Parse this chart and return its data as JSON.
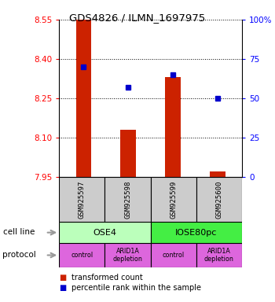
{
  "title": "GDS4826 / ILMN_1697975",
  "samples": [
    "GSM925597",
    "GSM925598",
    "GSM925599",
    "GSM925600"
  ],
  "bar_values": [
    8.55,
    8.13,
    8.33,
    7.97
  ],
  "bar_baseline": 7.95,
  "percentile_values": [
    70,
    57,
    65,
    50
  ],
  "bar_color": "#CC2200",
  "dot_color": "#0000CC",
  "left_yticks": [
    7.95,
    8.1,
    8.25,
    8.4,
    8.55
  ],
  "right_yticks": [
    0,
    25,
    50,
    75,
    100
  ],
  "ylim_left": [
    7.95,
    8.55
  ],
  "ylim_right": [
    0,
    100
  ],
  "cell_line_labels": [
    "OSE4",
    "IOSE80pc"
  ],
  "cell_line_spans": [
    [
      0,
      2
    ],
    [
      2,
      4
    ]
  ],
  "cell_line_color_ose4": "#BBFFBB",
  "cell_line_color_iose": "#44EE44",
  "protocol_labels": [
    "control",
    "ARID1A\ndepletion",
    "control",
    "ARID1A\ndepletion"
  ],
  "protocol_color": "#DD66DD",
  "sample_box_color": "#CCCCCC",
  "background_color": "#FFFFFF",
  "legend_red_label": "transformed count",
  "legend_blue_label": "percentile rank within the sample",
  "cell_line_row_label": "cell line",
  "protocol_row_label": "protocol",
  "arrow_color": "#999999"
}
